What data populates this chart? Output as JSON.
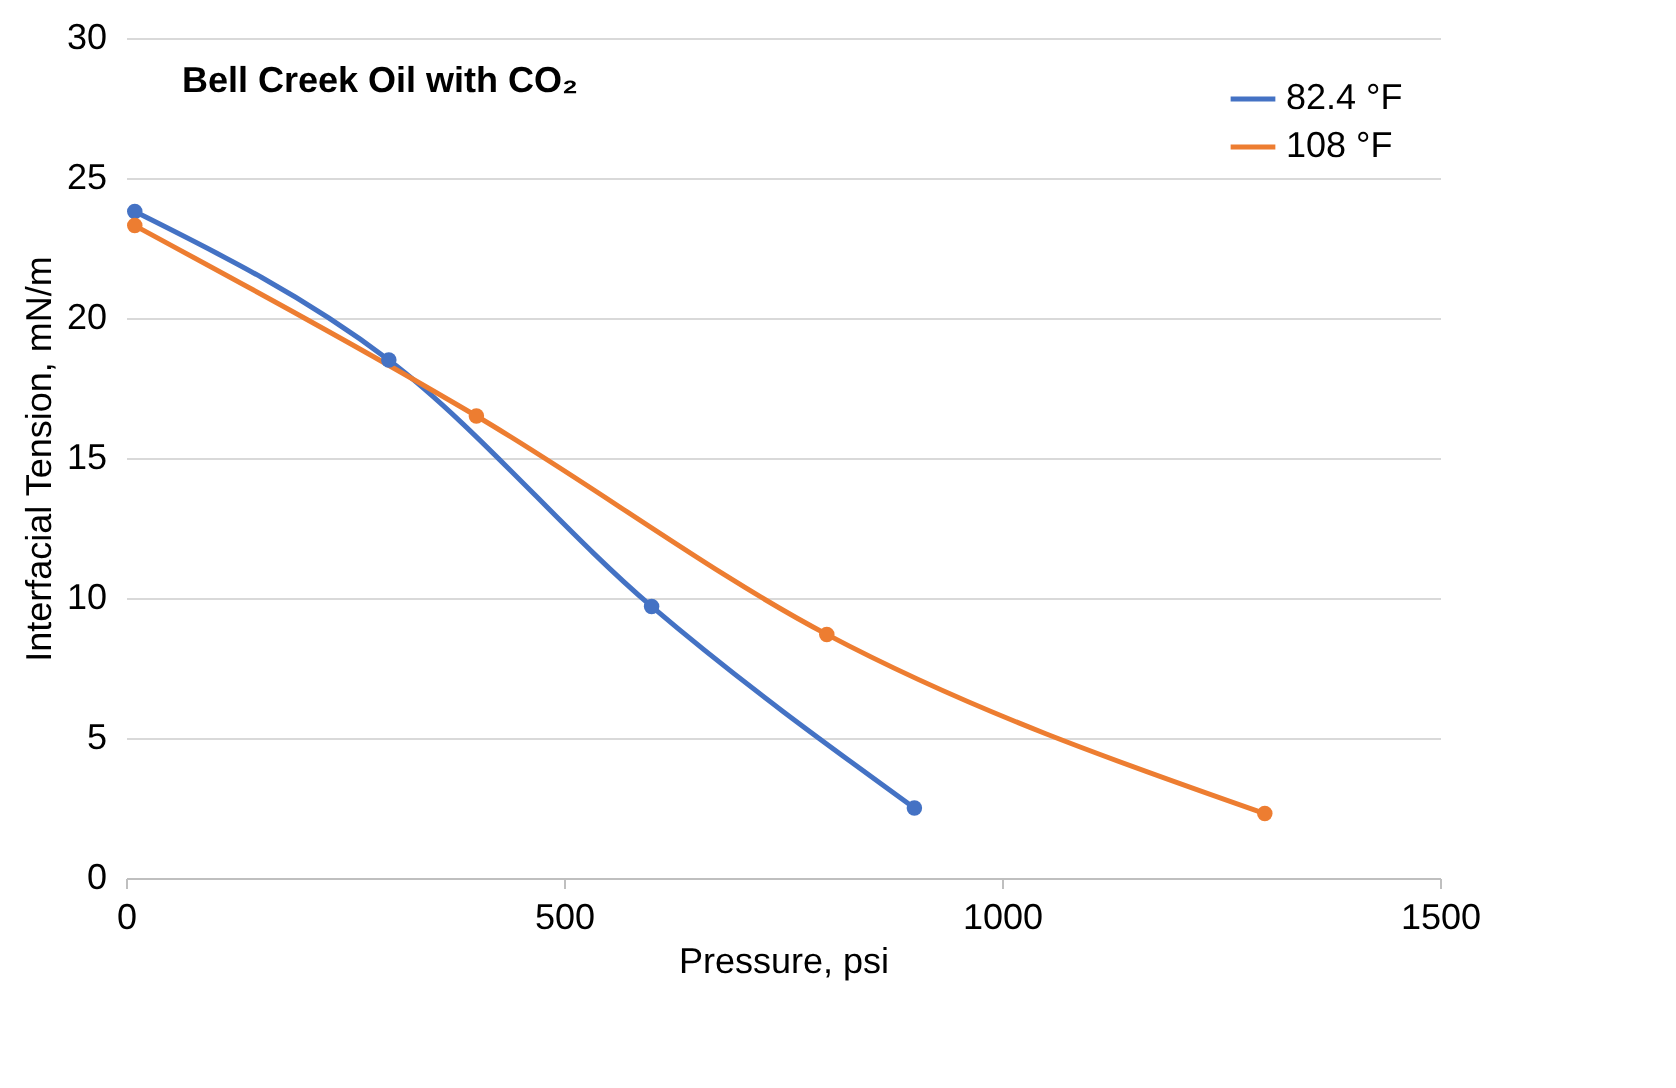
{
  "chart_data": {
    "type": "line",
    "title": "Bell Creek Oil with CO₂",
    "xlabel": "Pressure, psi",
    "ylabel": "Interfacial Tension, mN/m",
    "series": [
      {
        "name": "82.4 °F",
        "color": "#4472c4",
        "x": [
          10,
          300,
          600,
          900
        ],
        "values": [
          23.8,
          18.5,
          9.7,
          2.5
        ]
      },
      {
        "name": "108 °F",
        "color": "#ed7d31",
        "x": [
          10,
          400,
          800,
          1300
        ],
        "values": [
          23.3,
          16.5,
          8.7,
          2.3
        ]
      }
    ],
    "xlim": [
      0,
      1500
    ],
    "xticks": [
      0,
      500,
      1000,
      1500
    ],
    "ylim": [
      0,
      30
    ],
    "yticks": [
      0,
      5,
      10,
      15,
      20,
      25,
      30
    ],
    "grid": "y",
    "legend": "top right",
    "marker": "circle",
    "line_style": "solid"
  }
}
